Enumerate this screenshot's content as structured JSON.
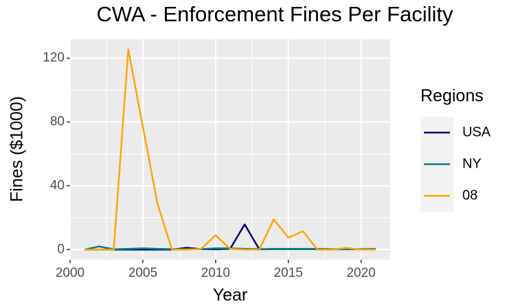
{
  "chart_data": {
    "type": "line",
    "title": "CWA - Enforcement Fines Per Facility",
    "x_label": "Year",
    "y_label": "Fines ($1000)",
    "legend_title": "Regions",
    "x": [
      2001,
      2002,
      2003,
      2004,
      2005,
      2006,
      2007,
      2008,
      2009,
      2010,
      2011,
      2012,
      2013,
      2014,
      2015,
      2016,
      2017,
      2018,
      2019,
      2020,
      2021
    ],
    "series": [
      {
        "name": "USA",
        "color": "#000080",
        "values": [
          0,
          0,
          0,
          0,
          0,
          0,
          0,
          1.2,
          0.3,
          0.2,
          0.5,
          15.8,
          0.2,
          0.3,
          0.3,
          0.3,
          0.3,
          0.2,
          0.2,
          0.2,
          0.3
        ]
      },
      {
        "name": "NY",
        "color": "#008080",
        "values": [
          0,
          2,
          0.2,
          0.5,
          0.8,
          0.5,
          0.3,
          0.3,
          0.3,
          0.8,
          0.8,
          0.5,
          0.3,
          0.5,
          0.5,
          0.5,
          0.5,
          0.3,
          0.3,
          0.3,
          0.5
        ]
      },
      {
        "name": "08",
        "color": "#FFA500",
        "values": [
          0,
          0,
          0,
          125.5,
          77,
          29,
          0,
          0,
          0.5,
          9,
          0.5,
          0,
          0,
          19,
          7.5,
          11.5,
          0,
          0,
          1,
          0,
          0
        ]
      }
    ],
    "xlim": [
      2000,
      2022
    ],
    "xticks": [
      2000,
      2005,
      2010,
      2015,
      2020
    ],
    "ylim": [
      -6.3,
      131.9
    ],
    "yticks": [
      0,
      40,
      80,
      120
    ],
    "grid": true,
    "legend": "right"
  }
}
